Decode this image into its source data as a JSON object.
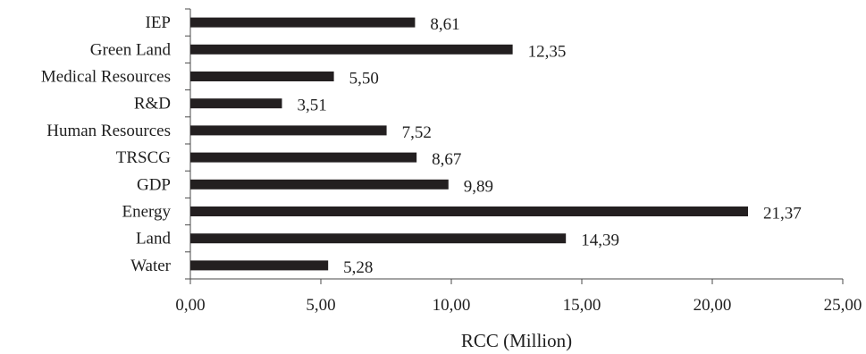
{
  "chart_data": {
    "type": "bar",
    "orientation": "horizontal",
    "categories": [
      "IEP",
      "Green Land",
      "Medical Resources",
      "R&D",
      "Human Resources",
      "TRSCG",
      "GDP",
      "Energy",
      "Land",
      "Water"
    ],
    "values": [
      8.61,
      12.35,
      5.5,
      3.51,
      7.52,
      8.67,
      9.89,
      21.37,
      14.39,
      5.28
    ],
    "value_labels": [
      "8,61",
      "12,35",
      "5,50",
      "3,51",
      "7,52",
      "8,67",
      "9,89",
      "21,37",
      "14,39",
      "5,28"
    ],
    "xlabel": "RCC (Million)",
    "ylabel": "",
    "xlim": [
      0,
      25
    ],
    "x_ticks": [
      0,
      5,
      10,
      15,
      20,
      25
    ],
    "x_tick_labels": [
      "0,00",
      "5,00",
      "10,00",
      "15,00",
      "20,00",
      "25,00"
    ],
    "grid": false,
    "legend": "none",
    "bar_color": "#231f20",
    "axis_color": "#4a4a4a"
  }
}
